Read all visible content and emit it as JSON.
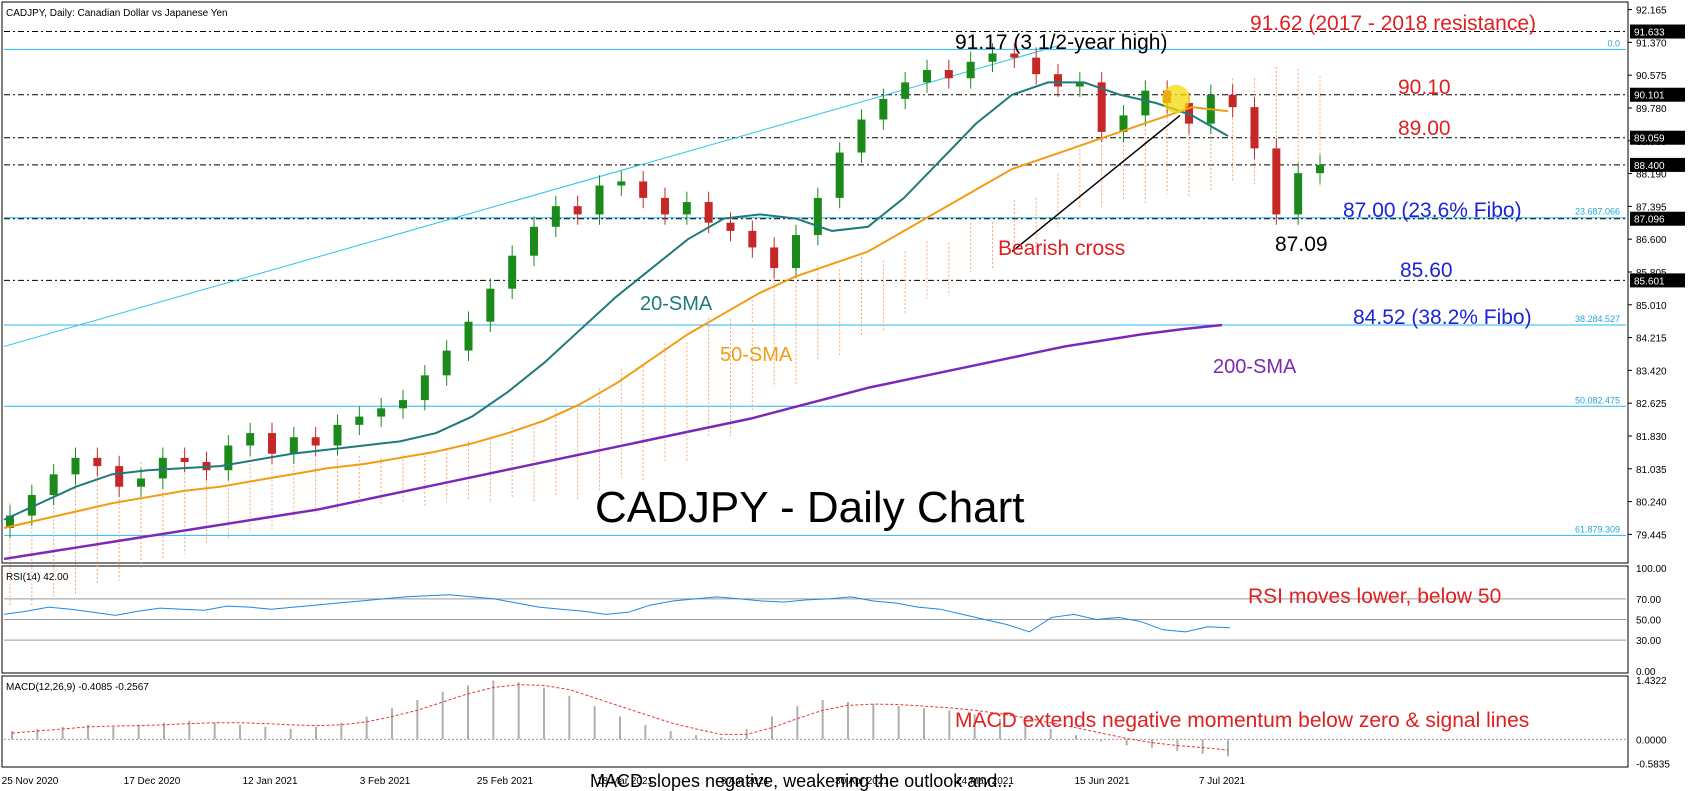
{
  "header": {
    "main_caption": "CADJPY, Daily:  Canadian Dollar vs Japanese Yen",
    "rsi_caption": "RSI(14) 42.00",
    "macd_caption": "MACD(12,26,9) -0.4085 -0.2567"
  },
  "chart_data": {
    "type": "line",
    "title": "CADJPY - Daily Chart",
    "price_axis_ticks": [
      "92.165",
      "91.370",
      "90.575",
      "89.780",
      "88.985",
      "88.190",
      "87.395",
      "86.600",
      "85.805",
      "85.010",
      "84.215",
      "83.420",
      "82.625",
      "81.830",
      "81.035",
      "80.240",
      "79.445"
    ],
    "price_ylim": [
      78.8,
      92.3
    ],
    "highlighted_levels": [
      {
        "value": 91.633,
        "label": "91.633"
      },
      {
        "value": 90.101,
        "label": "90.101"
      },
      {
        "value": 89.059,
        "label": "89.059"
      },
      {
        "value": 88.4,
        "label": "88.400"
      },
      {
        "value": 87.096,
        "label": "87.096"
      },
      {
        "value": 85.601,
        "label": "85.601"
      }
    ],
    "fibonacci_levels": [
      {
        "label": "0.0",
        "value": 91.2
      },
      {
        "label": "23.687.066",
        "value": 87.12
      },
      {
        "label": "38.284.527",
        "value": 84.52
      },
      {
        "label": "50.082.475",
        "value": 82.55
      },
      {
        "label": "61.879.309",
        "value": 79.42
      }
    ],
    "x_axis_dates": [
      "25 Nov 2020",
      "17 Dec 2020",
      "12 Jan 2021",
      "3 Feb 2021",
      "25 Feb 2021",
      "18 Mar 2021",
      "8 Apr 2021",
      "30 Apr 2021",
      "24 May 2021",
      "15 Jun 2021",
      "7 Jul 2021"
    ],
    "annotations": {
      "high": "91.17 (3 1/2-year high)",
      "resistance": "91.62 (2017 - 2018 resistance)",
      "level_9010": "90.10",
      "level_8900": "89.00",
      "fibo_236": "87.00 (23.6% Fibo)",
      "low": "87.09",
      "level_8560": "85.60",
      "fibo_382": "84.52 (38.2% Fibo)",
      "bearish_cross": "Bearish cross",
      "sma20": "20-SMA",
      "sma50": "50-SMA",
      "sma200": "200-SMA",
      "rsi_note": "RSI moves lower, below 50",
      "macd_note": "MACD extends negative momentum below zero & signal lines",
      "cut_text": "MACD slopes negative, weakening the outlook and..."
    },
    "series": [
      {
        "name": "20-SMA",
        "color": "#1f7a7a",
        "values": [
          79.8,
          80.2,
          80.6,
          80.9,
          81.0,
          81.05,
          81.1,
          81.25,
          81.4,
          81.5,
          81.6,
          81.7,
          81.9,
          82.3,
          82.9,
          83.6,
          84.4,
          85.2,
          85.9,
          86.6,
          87.1,
          87.2,
          87.1,
          86.8,
          86.9,
          87.6,
          88.5,
          89.4,
          90.1,
          90.4,
          90.4,
          90.1,
          89.9,
          89.6,
          89.1
        ]
      },
      {
        "name": "50-SMA",
        "color": "#f39c12",
        "values": [
          79.6,
          79.8,
          80.0,
          80.2,
          80.35,
          80.5,
          80.6,
          80.75,
          80.9,
          81.05,
          81.15,
          81.3,
          81.45,
          81.65,
          81.9,
          82.2,
          82.6,
          83.1,
          83.7,
          84.3,
          84.8,
          85.3,
          85.7,
          86.0,
          86.3,
          86.8,
          87.3,
          87.8,
          88.3,
          88.6,
          88.9,
          89.2,
          89.5,
          89.8,
          89.7
        ]
      },
      {
        "name": "200-SMA",
        "color": "#7b28b8",
        "values": [
          78.85,
          79.0,
          79.15,
          79.3,
          79.45,
          79.6,
          79.75,
          79.9,
          80.05,
          80.25,
          80.45,
          80.65,
          80.85,
          81.05,
          81.25,
          81.45,
          81.65,
          81.85,
          82.05,
          82.25,
          82.5,
          82.75,
          83.0,
          83.2,
          83.4,
          83.6,
          83.8,
          84.0,
          84.15,
          84.3,
          84.42,
          84.52
        ]
      }
    ],
    "candles_close": [
      79.9,
      80.4,
      80.9,
      81.3,
      81.1,
      80.6,
      80.8,
      81.3,
      81.2,
      81.0,
      81.6,
      81.9,
      81.4,
      81.8,
      81.6,
      82.1,
      82.3,
      82.5,
      82.7,
      83.3,
      83.9,
      84.6,
      85.4,
      86.2,
      86.9,
      87.4,
      87.2,
      87.9,
      88.0,
      87.6,
      87.2,
      87.5,
      87.0,
      86.8,
      86.4,
      85.9,
      86.7,
      87.6,
      88.7,
      89.5,
      90.0,
      90.4,
      90.7,
      90.5,
      90.9,
      91.1,
      91.0,
      90.6,
      90.3,
      90.4,
      89.2,
      89.6,
      90.2,
      89.9,
      89.4,
      90.1,
      89.8,
      88.8,
      87.2,
      88.2,
      88.4
    ]
  },
  "rsi": {
    "ticks": [
      "100.00",
      "70.00",
      "50.00",
      "30.00",
      "0.00"
    ],
    "values": [
      55,
      58,
      62,
      60,
      57,
      54,
      58,
      61,
      60,
      59,
      63,
      62,
      60,
      62,
      64,
      66,
      68,
      70,
      72,
      73,
      74,
      72,
      70,
      66,
      62,
      60,
      58,
      55,
      57,
      64,
      68,
      70,
      72,
      70,
      68,
      67,
      69,
      70,
      72,
      68,
      66,
      62,
      60,
      55,
      50,
      45,
      38,
      52,
      55,
      50,
      52,
      48,
      40,
      38,
      43,
      42
    ]
  },
  "macd": {
    "ticks": [
      "1.4322",
      "0.0000",
      "-0.5835"
    ],
    "ylim": [
      -0.62,
      1.48
    ],
    "histogram": [
      0.2,
      0.25,
      0.3,
      0.35,
      0.3,
      0.35,
      0.4,
      0.45,
      0.4,
      0.35,
      0.3,
      0.25,
      0.3,
      0.4,
      0.55,
      0.75,
      0.95,
      1.15,
      1.3,
      1.42,
      1.38,
      1.25,
      1.05,
      0.8,
      0.55,
      0.35,
      0.2,
      0.1,
      0.05,
      0.25,
      0.55,
      0.8,
      0.95,
      0.9,
      0.85,
      0.8,
      0.75,
      0.7,
      0.6,
      0.5,
      0.4,
      0.25,
      0.1,
      -0.05,
      -0.15,
      -0.2,
      -0.28,
      -0.35,
      -0.41
    ],
    "signal": [
      0.15,
      0.2,
      0.25,
      0.3,
      0.32,
      0.33,
      0.35,
      0.38,
      0.4,
      0.4,
      0.38,
      0.35,
      0.33,
      0.35,
      0.42,
      0.55,
      0.7,
      0.9,
      1.1,
      1.25,
      1.32,
      1.3,
      1.2,
      1.0,
      0.8,
      0.6,
      0.4,
      0.25,
      0.12,
      0.12,
      0.28,
      0.5,
      0.7,
      0.82,
      0.85,
      0.84,
      0.8,
      0.76,
      0.7,
      0.62,
      0.52,
      0.4,
      0.28,
      0.15,
      0.02,
      -0.08,
      -0.15,
      -0.2,
      -0.26
    ]
  }
}
